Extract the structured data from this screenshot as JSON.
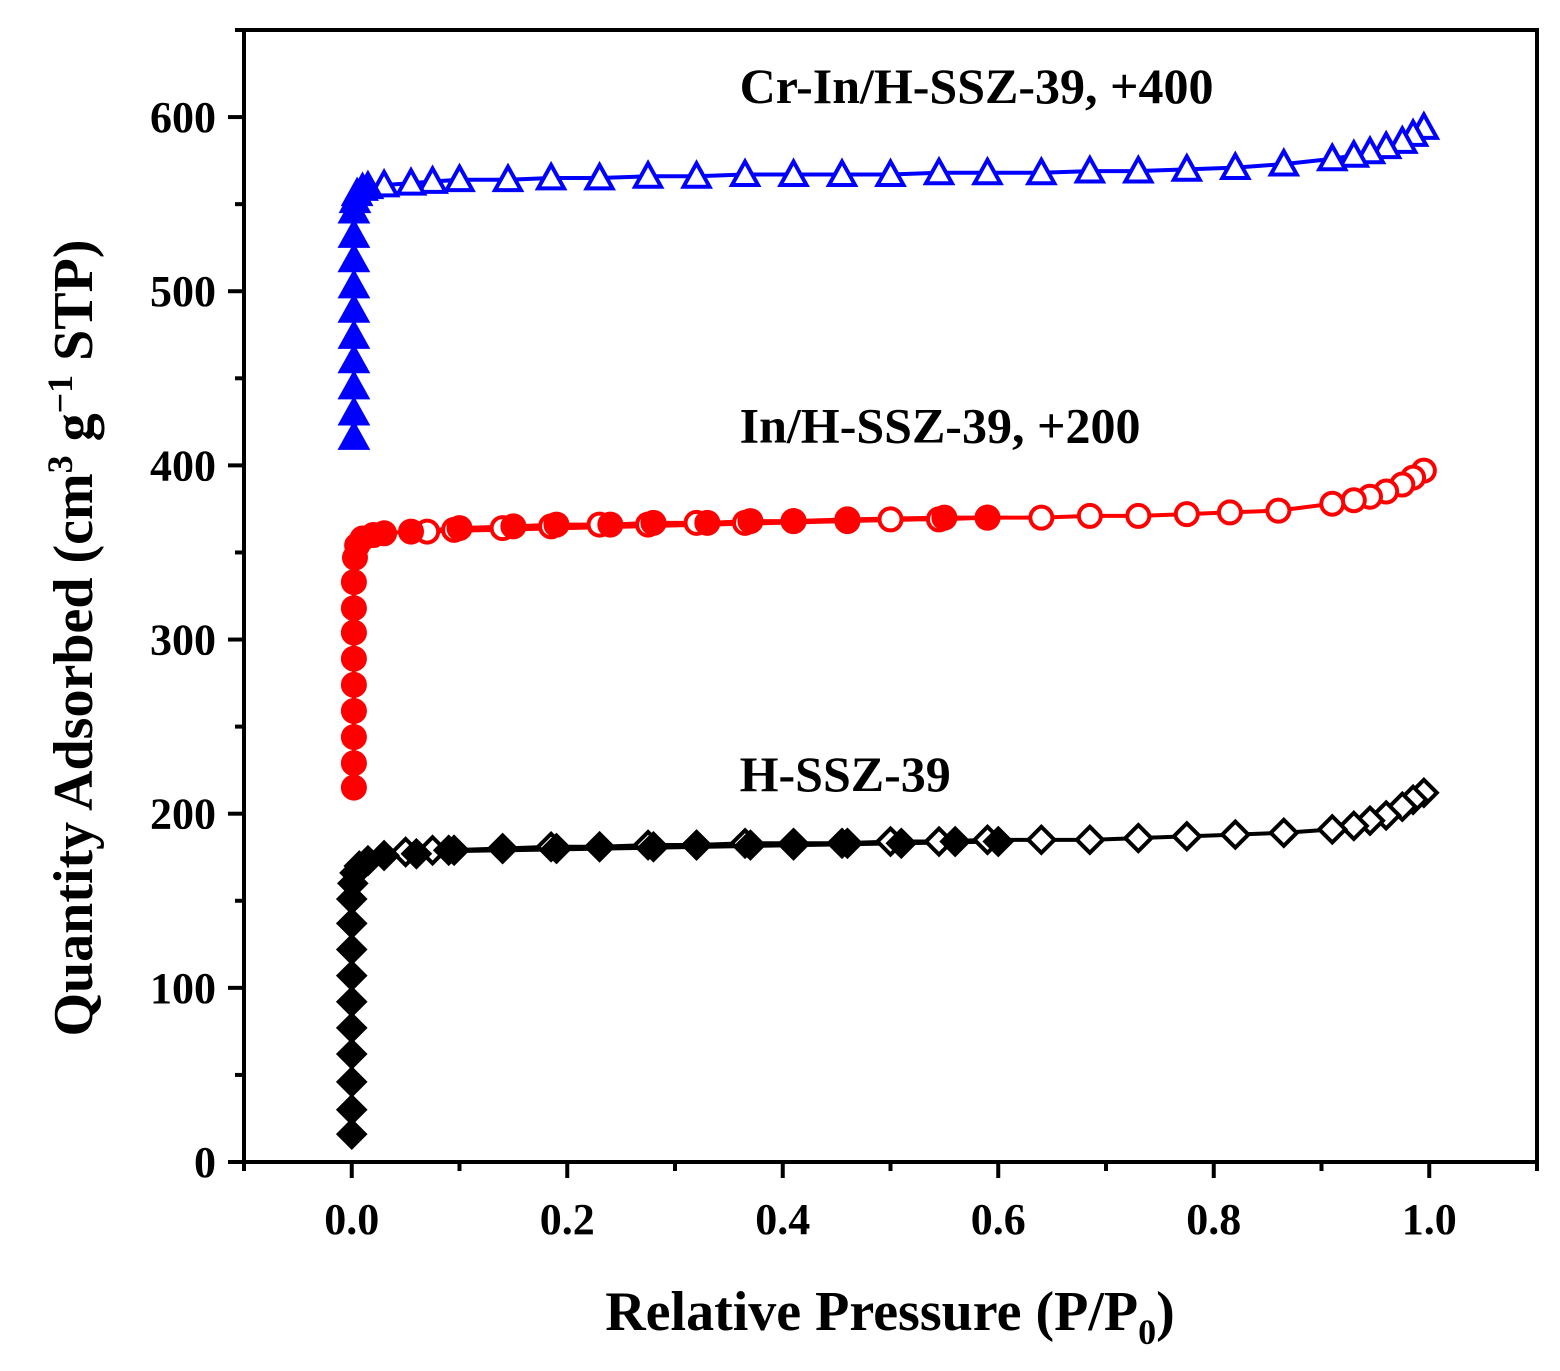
{
  "chart_data": {
    "type": "scatter",
    "title": "",
    "xlabel": {
      "main": "Relative Pressure (P/P",
      "sub": "0",
      "tail": ")"
    },
    "ylabel": {
      "main": "Quantity Adsorbed (cm",
      "sup1": "3",
      "mid": " g",
      "sup2": "−1",
      "tail": " STP)"
    },
    "xlim": [
      -0.1,
      1.1
    ],
    "ylim": [
      0,
      650
    ],
    "xticks": [
      0.0,
      0.2,
      0.4,
      0.6,
      0.8,
      1.0
    ],
    "xtick_labels": [
      "0.0",
      "0.2",
      "0.4",
      "0.6",
      "0.8",
      "1.0"
    ],
    "xminor": [
      -0.1,
      0.1,
      0.3,
      0.5,
      0.7,
      0.9,
      1.1
    ],
    "yticks": [
      0,
      100,
      200,
      300,
      400,
      500,
      600
    ],
    "ytick_labels": [
      "0",
      "100",
      "200",
      "300",
      "400",
      "500",
      "600"
    ],
    "yminor": [
      50,
      150,
      250,
      350,
      450,
      550,
      650
    ],
    "series": [
      {
        "name": "H-SSZ-39",
        "color": "#000000",
        "marker": "diamond",
        "label": "H-SSZ-39",
        "label_pos": [
          0.36,
          213
        ],
        "adsorption": {
          "x": [
            0.0,
            0.0,
            0.0,
            0.0,
            0.0,
            0.0,
            0.0,
            0.0,
            0.0,
            0.0,
            0.001,
            0.003,
            0.007,
            0.015,
            0.03,
            0.06,
            0.09,
            0.14,
            0.19,
            0.23,
            0.28,
            0.32,
            0.37,
            0.41,
            0.46,
            0.51,
            0.56,
            0.6
          ],
          "y": [
            16,
            30,
            46,
            62,
            77,
            92,
            107,
            122,
            137,
            151,
            160,
            166,
            170,
            173,
            176,
            177,
            179,
            180,
            180,
            181,
            181,
            182,
            182,
            182,
            183,
            183,
            184,
            184
          ]
        },
        "desorption": {
          "x": [
            0.995,
            0.985,
            0.975,
            0.96,
            0.945,
            0.93,
            0.91,
            0.865,
            0.82,
            0.775,
            0.73,
            0.685,
            0.64,
            0.59,
            0.545,
            0.5,
            0.455,
            0.41,
            0.365,
            0.32,
            0.275,
            0.23,
            0.185,
            0.14,
            0.095,
            0.075,
            0.05
          ],
          "y": [
            212,
            208,
            204,
            199,
            196,
            193,
            191,
            189,
            188,
            187,
            186,
            185,
            185,
            185,
            184,
            184,
            183,
            183,
            183,
            182,
            182,
            181,
            181,
            180,
            179,
            179,
            178
          ]
        }
      },
      {
        "name": "In/H-SSZ-39, +200",
        "color": "#ff0000",
        "marker": "circle",
        "label": "In/H-SSZ-39, +200",
        "label_pos": [
          0.36,
          413
        ],
        "adsorption": {
          "x": [
            0.002,
            0.002,
            0.002,
            0.002,
            0.002,
            0.002,
            0.002,
            0.002,
            0.002,
            0.003,
            0.005,
            0.01,
            0.02,
            0.03,
            0.055,
            0.1,
            0.15,
            0.19,
            0.24,
            0.28,
            0.33,
            0.37,
            0.41,
            0.46,
            0.55,
            0.59
          ],
          "y": [
            215,
            229,
            244,
            259,
            274,
            289,
            304,
            318,
            333,
            347,
            354,
            358,
            360,
            361,
            362,
            364,
            365,
            366,
            366,
            367,
            367,
            368,
            368,
            369,
            370,
            370
          ]
        },
        "desorption": {
          "x": [
            0.995,
            0.985,
            0.975,
            0.96,
            0.945,
            0.93,
            0.91,
            0.86,
            0.815,
            0.775,
            0.73,
            0.685,
            0.64,
            0.59,
            0.545,
            0.5,
            0.46,
            0.41,
            0.365,
            0.32,
            0.275,
            0.23,
            0.185,
            0.14,
            0.095,
            0.07
          ],
          "y": [
            397,
            393,
            389,
            385,
            382,
            380,
            378,
            374,
            373,
            372,
            371,
            371,
            370,
            370,
            369,
            369,
            368,
            368,
            367,
            367,
            366,
            366,
            365,
            364,
            363,
            362
          ]
        }
      },
      {
        "name": "Cr-In/H-SSZ-39, +400",
        "color": "#0000ff",
        "marker": "triangle",
        "label": "Cr-In/H-SSZ-39, +400",
        "label_pos": [
          0.36,
          608
        ],
        "adsorption": {
          "x": [
            0.002,
            0.002,
            0.002,
            0.002,
            0.002,
            0.002,
            0.002,
            0.002,
            0.002,
            0.002,
            0.003,
            0.005,
            0.01,
            0.015
          ],
          "y": [
            416,
            430,
            445,
            460,
            474,
            489,
            503,
            518,
            532,
            546,
            552,
            556,
            559,
            560
          ]
        },
        "desorption": {
          "x": [
            0.995,
            0.985,
            0.975,
            0.96,
            0.945,
            0.93,
            0.91,
            0.865,
            0.82,
            0.775,
            0.73,
            0.685,
            0.64,
            0.59,
            0.545,
            0.5,
            0.455,
            0.41,
            0.365,
            0.32,
            0.275,
            0.23,
            0.185,
            0.145,
            0.1,
            0.075,
            0.055,
            0.03
          ],
          "y": [
            594,
            590,
            586,
            583,
            580,
            578,
            576,
            573,
            571,
            570,
            569,
            569,
            568,
            568,
            568,
            567,
            567,
            567,
            567,
            566,
            566,
            565,
            565,
            564,
            564,
            563,
            562,
            561
          ]
        }
      }
    ]
  }
}
